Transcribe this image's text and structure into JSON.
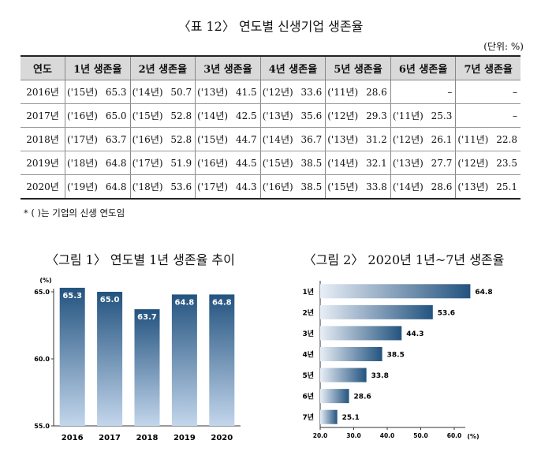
{
  "table_title": "〈표 12〉 연도별 신생기업 생존율",
  "unit": "(단위: %)",
  "table": {
    "headers": [
      "연도",
      "1년 생존율",
      "2년 생존율",
      "3년 생존율",
      "4년 생존율",
      "5년 생존율",
      "6년 생존율",
      "7년 생존율"
    ],
    "rows": [
      {
        "year": "2016년",
        "cells": [
          [
            "('15년)",
            "65.3"
          ],
          [
            "('14년)",
            "50.7"
          ],
          [
            "('13년)",
            "41.5"
          ],
          [
            "('12년)",
            "33.6"
          ],
          [
            "('11년)",
            "28.6"
          ],
          [
            "",
            "–"
          ],
          [
            "",
            "–"
          ]
        ]
      },
      {
        "year": "2017년",
        "cells": [
          [
            "('16년)",
            "65.0"
          ],
          [
            "('15년)",
            "52.8"
          ],
          [
            "('14년)",
            "42.5"
          ],
          [
            "('13년)",
            "35.6"
          ],
          [
            "('12년)",
            "29.3"
          ],
          [
            "('11년)",
            "25.3"
          ],
          [
            "",
            "–"
          ]
        ]
      },
      {
        "year": "2018년",
        "cells": [
          [
            "('17년)",
            "63.7"
          ],
          [
            "('16년)",
            "52.8"
          ],
          [
            "('15년)",
            "44.7"
          ],
          [
            "('14년)",
            "36.7"
          ],
          [
            "('13년)",
            "31.2"
          ],
          [
            "('12년)",
            "26.1"
          ],
          [
            "('11년)",
            "22.8"
          ]
        ]
      },
      {
        "year": "2019년",
        "cells": [
          [
            "('18년)",
            "64.8"
          ],
          [
            "('17년)",
            "51.9"
          ],
          [
            "('16년)",
            "44.5"
          ],
          [
            "('15년)",
            "38.5"
          ],
          [
            "('14년)",
            "32.1"
          ],
          [
            "('13년)",
            "27.7"
          ],
          [
            "('12년)",
            "23.5"
          ]
        ]
      },
      {
        "year": "2020년",
        "cells": [
          [
            "('19년)",
            "64.8"
          ],
          [
            "('18년)",
            "53.6"
          ],
          [
            "('17년)",
            "44.3"
          ],
          [
            "('16년)",
            "38.5"
          ],
          [
            "('15년)",
            "33.8"
          ],
          [
            "('14년)",
            "28.6"
          ],
          [
            "('13년)",
            "25.1"
          ]
        ]
      }
    ]
  },
  "note": "* (   )는 기업의 신생 연도임",
  "chart_data": [
    {
      "type": "bar",
      "title": "〈그림 1〉 연도별 1년 생존율 추이",
      "ylabel": "(%)",
      "categories": [
        "2016",
        "2017",
        "2018",
        "2019",
        "2020"
      ],
      "values": [
        65.3,
        65.0,
        63.7,
        64.8,
        64.8
      ],
      "value_labels": [
        "65.3",
        "65.0",
        "63.7",
        "64.8",
        "64.8"
      ],
      "ylim": [
        55.0,
        65.0
      ],
      "y_ticks": [
        "65.0",
        "60.0",
        "55.0"
      ],
      "bar_color": "#2d5f8e"
    },
    {
      "type": "bar",
      "orientation": "horizontal",
      "title": "〈그림 2〉 2020년 1년~7년 생존율",
      "xlabel": "(%)",
      "categories": [
        "1년",
        "2년",
        "3년",
        "4년",
        "5년",
        "6년",
        "7년"
      ],
      "values": [
        64.8,
        53.6,
        44.3,
        38.5,
        33.8,
        28.6,
        25.1
      ],
      "value_labels": [
        "64.8",
        "53.6",
        "44.3",
        "38.5",
        "33.8",
        "28.6",
        "25.1"
      ],
      "xlim": [
        20.0,
        60.0
      ],
      "x_ticks": [
        "20.0",
        "30.0",
        "40.0",
        "50.0",
        "60.0"
      ],
      "bar_color": "#2d5f8e"
    }
  ]
}
